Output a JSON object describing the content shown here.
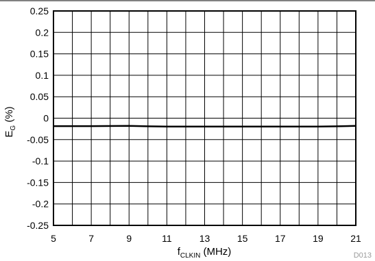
{
  "chart_data": {
    "type": "line",
    "xlabel_main": "f",
    "xlabel_sub": "CLKIN",
    "xlabel_unit": " (MHz)",
    "ylabel_main": "E",
    "ylabel_sub": "G",
    "ylabel_unit": " (%)",
    "figure_id": "D013",
    "xlim": [
      5,
      21
    ],
    "ylim": [
      -0.25,
      0.25
    ],
    "x_ticks": [
      5,
      7,
      9,
      11,
      13,
      15,
      17,
      19,
      21
    ],
    "y_ticks": [
      0.25,
      0.2,
      0.15,
      0.1,
      0.05,
      0,
      -0.05,
      -0.1,
      -0.15,
      -0.2,
      -0.25
    ],
    "x_tick_labels": [
      "5",
      "7",
      "9",
      "11",
      "13",
      "15",
      "17",
      "19",
      "21"
    ],
    "y_tick_labels": [
      "0.25",
      "0.2",
      "0.15",
      "0.1",
      "0.05",
      "0",
      "-0.05",
      "-0.1",
      "-0.15",
      "-0.2",
      "-0.25"
    ],
    "x_gridlines": [
      6,
      8,
      10,
      12,
      14,
      16,
      18,
      20
    ],
    "grid": true,
    "series": [
      {
        "color": "#000000",
        "x": [
          5,
          7,
          9,
          10,
          11,
          13,
          15,
          17,
          19,
          20,
          21
        ],
        "y": [
          -0.0185,
          -0.0185,
          -0.018,
          -0.019,
          -0.0195,
          -0.0195,
          -0.0195,
          -0.0195,
          -0.0195,
          -0.019,
          -0.018
        ]
      }
    ]
  }
}
